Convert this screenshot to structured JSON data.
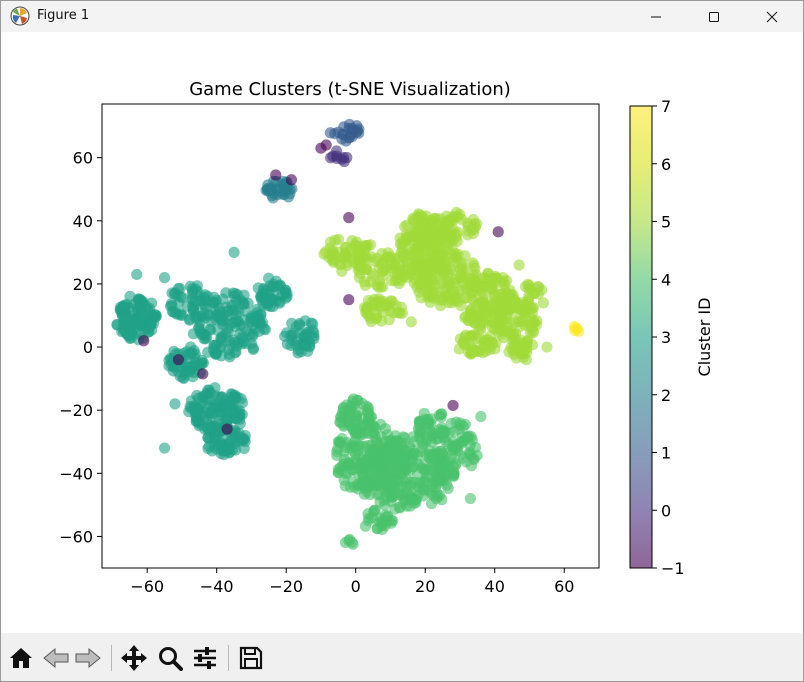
{
  "window": {
    "title": "Figure 1"
  },
  "toolbar": {
    "buttons": [
      "home-icon",
      "back-icon",
      "forward-icon",
      "pan-icon",
      "zoom-icon",
      "configure-subplots-icon",
      "save-icon"
    ]
  },
  "chart_data": {
    "type": "scatter",
    "title": "Game Clusters (t-SNE Visualization)",
    "xlabel": "",
    "ylabel": "",
    "xlim": [
      -73,
      70
    ],
    "ylim": [
      -70,
      77
    ],
    "xticks": [
      -60,
      -40,
      -20,
      0,
      20,
      40,
      60
    ],
    "yticks": [
      -60,
      -40,
      -20,
      0,
      20,
      40,
      60
    ],
    "colorbar": {
      "label": "Cluster ID",
      "range": [
        -1,
        7
      ],
      "ticks": [
        -1,
        0,
        1,
        2,
        3,
        4,
        5,
        6,
        7
      ],
      "colormap": "viridis",
      "alpha": 0.6
    },
    "clusters": [
      {
        "id": -1,
        "color": "#440154",
        "blobs": [],
        "points": [
          [
            -23,
            54.5
          ],
          [
            -18.5,
            53
          ],
          [
            -2,
            41
          ],
          [
            41,
            36.5
          ],
          [
            -2,
            15
          ],
          [
            -44,
            -8.5
          ],
          [
            -51,
            -4
          ],
          [
            28,
            -18.5
          ],
          [
            -10,
            63
          ],
          [
            -8.5,
            64
          ],
          [
            -61,
            2
          ],
          [
            -37,
            -26
          ]
        ]
      },
      {
        "id": 0,
        "color": "#46327e",
        "blobs": [
          [
            -4.5,
            60,
            2.2,
            1.8,
            6
          ]
        ],
        "points": [
          [
            -4,
            59.5
          ],
          [
            -5.5,
            60.5
          ],
          [
            -3.5,
            60
          ]
        ]
      },
      {
        "id": 1,
        "color": "#365c8d",
        "blobs": [
          [
            -1.5,
            68,
            2.5,
            2.6,
            18
          ],
          [
            -6,
            67.5,
            1.2,
            1.2,
            3
          ]
        ],
        "points": []
      },
      {
        "id": 2,
        "color": "#277f8e",
        "blobs": [
          [
            -22,
            50,
            3.3,
            2.8,
            34
          ]
        ],
        "points": []
      },
      {
        "id": 3,
        "color": "#1fa187",
        "blobs": [
          [
            -63,
            9,
            5,
            6,
            110
          ],
          [
            -49,
            -5,
            4.5,
            4.5,
            55
          ],
          [
            -36,
            7,
            9,
            9,
            140
          ],
          [
            -24,
            17,
            4,
            4,
            45
          ],
          [
            -16,
            3,
            4.5,
            4.5,
            40
          ],
          [
            -40,
            -20,
            7,
            6,
            120
          ],
          [
            -37,
            -30,
            5,
            4,
            60
          ],
          [
            -48,
            14,
            5,
            5,
            50
          ]
        ],
        "points": [
          [
            -55,
            22
          ],
          [
            -63,
            23
          ],
          [
            -35,
            30
          ],
          [
            -52,
            -18
          ],
          [
            -55,
            -32
          ]
        ]
      },
      {
        "id": 4,
        "color": "#4ac16d",
        "blobs": [
          [
            0,
            -22,
            4,
            5,
            55
          ],
          [
            15,
            -40,
            12,
            10,
            260
          ],
          [
            4,
            -35,
            9,
            10,
            140
          ],
          [
            28,
            -32,
            6,
            8,
            70
          ],
          [
            22,
            -25,
            5,
            4,
            40
          ],
          [
            6,
            -55,
            4,
            3,
            25
          ],
          [
            -2,
            -62,
            1.6,
            1.2,
            5
          ]
        ],
        "points": [
          [
            36,
            -22
          ],
          [
            -5,
            -30
          ],
          [
            33,
            -48
          ],
          [
            -3,
            -44
          ]
        ]
      },
      {
        "id": 5,
        "color": "#a0da39",
        "blobs": [
          [
            -2,
            30,
            6,
            4,
            55
          ],
          [
            8,
            24,
            7,
            5,
            60
          ],
          [
            20,
            33,
            7,
            8,
            160
          ],
          [
            26,
            22,
            8,
            8,
            130
          ],
          [
            8,
            12,
            5,
            4,
            40
          ],
          [
            38,
            14,
            7,
            8,
            130
          ],
          [
            46,
            8,
            6,
            6,
            70
          ],
          [
            35,
            1,
            5,
            3,
            40
          ],
          [
            48,
            -1,
            4,
            3,
            25
          ],
          [
            30,
            38,
            5,
            4,
            35
          ],
          [
            51,
            16,
            3,
            4,
            15
          ]
        ],
        "points": [
          [
            47,
            26
          ],
          [
            54,
            14
          ],
          [
            16,
            8
          ],
          [
            -4,
            24
          ],
          [
            55,
            0
          ]
        ]
      },
      {
        "id": 6,
        "color": "#fde725",
        "blobs": [
          [
            63.5,
            5.8,
            0.9,
            0.9,
            4
          ]
        ],
        "points": [
          [
            63.5,
            6
          ]
        ]
      }
    ]
  }
}
